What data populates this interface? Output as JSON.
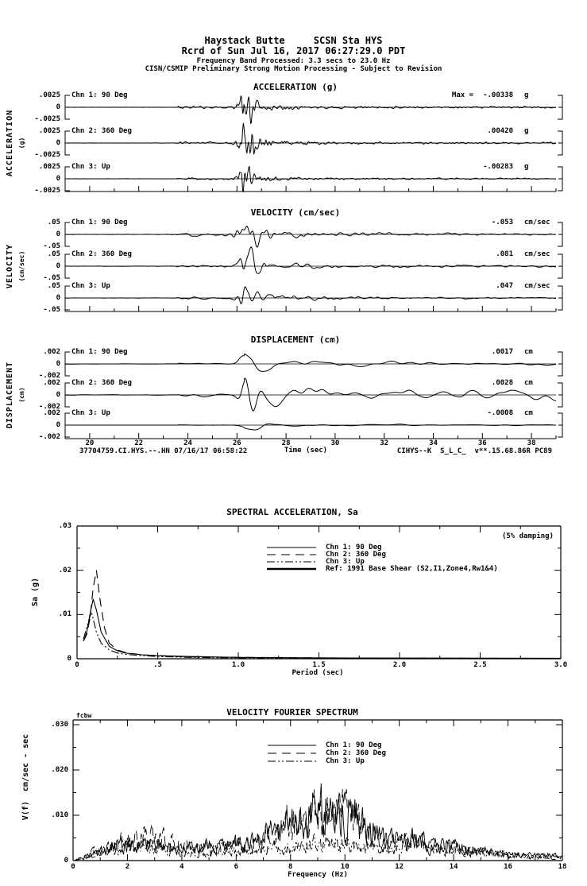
{
  "header": {
    "station_line": "Haystack Butte     SCSN Sta HYS",
    "record_line": "Rcrd of Sun Jul 16, 2017 06:27:29.0 PDT",
    "band_line": "Frequency Band Processed: 3.3 secs to 23.0 Hz",
    "notice_line": "CISN/CSMIP Preliminary Strong Motion Processing - Subject to Revision"
  },
  "timeseries": {
    "xlabel": "Time (sec)",
    "x_tick_labels": [
      "20",
      "22",
      "24",
      "26",
      "28",
      "30",
      "32",
      "34",
      "36",
      "38"
    ],
    "footer_left": "37704759.CI.HYS.--.HN 07/16/17 06:58:22",
    "footer_right": "CIHYS--K  S_L_C_  v**.15.68.86R PC89",
    "panels": [
      {
        "title": "ACCELERATION (g)",
        "side_label": "ACCELERATION",
        "side_unit": "(g)",
        "y_labels": [
          ".0025",
          "0",
          "-.0025"
        ],
        "channels": [
          {
            "label": "Chn 1: 90 Deg",
            "max_label": "Max =",
            "max_value": "-.00338",
            "max_unit": "g"
          },
          {
            "label": "Chn 2: 360 Deg",
            "max_value": ".00420",
            "max_unit": "g"
          },
          {
            "label": "Chn 3: Up",
            "max_value": "-.00283",
            "max_unit": "g"
          }
        ]
      },
      {
        "title": "VELOCITY (cm/sec)",
        "side_label": "VELOCITY",
        "side_unit": "(cm/sec)",
        "y_labels": [
          ".05",
          "0",
          "-.05"
        ],
        "channels": [
          {
            "label": "Chn 1: 90 Deg",
            "max_value": "-.053",
            "max_unit": "cm/sec"
          },
          {
            "label": "Chn 2: 360 Deg",
            "max_value": ".081",
            "max_unit": "cm/sec"
          },
          {
            "label": "Chn 3: Up",
            "max_value": ".047",
            "max_unit": "cm/sec"
          }
        ]
      },
      {
        "title": "DISPLACEMENT (cm)",
        "side_label": "DISPLACEMENT",
        "side_unit": "(cm)",
        "y_labels": [
          ".002",
          "0",
          "-.002"
        ],
        "channels": [
          {
            "label": "Chn 1: 90 Deg",
            "max_value": ".0017",
            "max_unit": "cm"
          },
          {
            "label": "Chn 2: 360 Deg",
            "max_value": ".0028",
            "max_unit": "cm"
          },
          {
            "label": "Chn 3: Up",
            "max_value": "-.0008",
            "max_unit": "cm"
          }
        ]
      }
    ]
  },
  "sa_plot": {
    "title": "SPECTRAL ACCELERATION, Sa",
    "damping_note": "(5% damping)",
    "ylabel": "Sa (g)",
    "xlabel": "Period (sec)",
    "y_tick_labels": [
      ".03",
      ".02",
      ".01",
      "0"
    ],
    "x_tick_labels": [
      "0",
      ".5",
      "1.0",
      "1.5",
      "2.0",
      "2.5",
      "3.0"
    ],
    "legend": [
      {
        "label": "Chn 1: 90 Deg",
        "style": "solid"
      },
      {
        "label": "Chn 2: 360 Deg",
        "style": "long-dash"
      },
      {
        "label": "Chn 3: Up",
        "style": "dash-dot-dot"
      },
      {
        "label": "Ref: 1991 Base Shear (S2,I1,Zone4,Rw1&4)",
        "style": "solid-thick"
      }
    ]
  },
  "fourier_plot": {
    "title": "VELOCITY FOURIER SPECTRUM",
    "corner_note": "fcbw",
    "ylabel": "V(f)  cm/sec - sec",
    "xlabel": "Frequency (Hz)",
    "y_tick_labels": [
      ".030",
      ".020",
      ".010",
      "0"
    ],
    "x_tick_labels": [
      "0",
      "2",
      "4",
      "6",
      "8",
      "10",
      "12",
      "14",
      "16",
      "18"
    ],
    "legend": [
      {
        "label": "Chn 1: 90 Deg",
        "style": "solid"
      },
      {
        "label": "Chn 2: 360 Deg",
        "style": "long-dash"
      },
      {
        "label": "Chn 3: Up",
        "style": "dash-dot-dot"
      }
    ]
  },
  "chart_data": [
    {
      "type": "line",
      "panel": "acceleration",
      "title": "ACCELERATION (g)",
      "xlabel": "Time (sec)",
      "x_range_sec": [
        19,
        39
      ],
      "x_ticks": [
        20,
        22,
        24,
        26,
        28,
        30,
        32,
        34,
        36,
        38
      ],
      "channel_axis_range": [
        -0.0025,
        0.0025
      ],
      "event_onset_sec": 23.6,
      "main_burst_sec": 26.2,
      "series": [
        {
          "name": "Chn 1: 90 Deg",
          "peak_value": -0.00338,
          "unit": "g"
        },
        {
          "name": "Chn 2: 360 Deg",
          "peak_value": 0.0042,
          "unit": "g"
        },
        {
          "name": "Chn 3: Up",
          "peak_value": -0.00283,
          "unit": "g"
        }
      ]
    },
    {
      "type": "line",
      "panel": "velocity",
      "title": "VELOCITY (cm/sec)",
      "xlabel": "Time (sec)",
      "x_range_sec": [
        19,
        39
      ],
      "x_ticks": [
        20,
        22,
        24,
        26,
        28,
        30,
        32,
        34,
        36,
        38
      ],
      "channel_axis_range": [
        -0.05,
        0.05
      ],
      "event_onset_sec": 23.6,
      "main_burst_sec": 26.2,
      "series": [
        {
          "name": "Chn 1: 90 Deg",
          "peak_value": -0.053,
          "unit": "cm/sec"
        },
        {
          "name": "Chn 2: 360 Deg",
          "peak_value": 0.081,
          "unit": "cm/sec"
        },
        {
          "name": "Chn 3: Up",
          "peak_value": 0.047,
          "unit": "cm/sec"
        }
      ]
    },
    {
      "type": "line",
      "panel": "displacement",
      "title": "DISPLACEMENT (cm)",
      "xlabel": "Time (sec)",
      "x_range_sec": [
        19,
        39
      ],
      "x_ticks": [
        20,
        22,
        24,
        26,
        28,
        30,
        32,
        34,
        36,
        38
      ],
      "channel_axis_range": [
        -0.002,
        0.002
      ],
      "event_onset_sec": 23.6,
      "main_burst_sec": 26.3,
      "series": [
        {
          "name": "Chn 1: 90 Deg",
          "peak_value": 0.0017,
          "unit": "cm"
        },
        {
          "name": "Chn 2: 360 Deg",
          "peak_value": 0.0028,
          "unit": "cm"
        },
        {
          "name": "Chn 3: Up",
          "peak_value": -0.0008,
          "unit": "cm"
        }
      ]
    },
    {
      "type": "line",
      "panel": "spectral_acceleration",
      "title": "SPECTRAL ACCELERATION, Sa",
      "xlabel": "Period (sec)",
      "ylabel": "Sa (g)",
      "xlim": [
        0,
        3.0
      ],
      "ylim": [
        0,
        0.03
      ],
      "damping": "5% damping",
      "grid": false,
      "legend_position": "top-center",
      "series": [
        {
          "name": "Chn 1: 90 Deg",
          "style": "solid",
          "points": [
            [
              0.04,
              0.004
            ],
            [
              0.06,
              0.006
            ],
            [
              0.08,
              0.01
            ],
            [
              0.1,
              0.0135
            ],
            [
              0.12,
              0.011
            ],
            [
              0.15,
              0.006
            ],
            [
              0.2,
              0.0028
            ],
            [
              0.25,
              0.0018
            ],
            [
              0.3,
              0.0013
            ],
            [
              0.4,
              0.0009
            ],
            [
              0.5,
              0.0007
            ],
            [
              0.7,
              0.0005
            ],
            [
              1.0,
              0.0003
            ],
            [
              1.5,
              0.0002
            ],
            [
              2.0,
              0.00015
            ],
            [
              3.0,
              0.0001
            ]
          ]
        },
        {
          "name": "Chn 2: 360 Deg",
          "style": "long-dash",
          "points": [
            [
              0.04,
              0.004
            ],
            [
              0.06,
              0.0055
            ],
            [
              0.08,
              0.009
            ],
            [
              0.1,
              0.016
            ],
            [
              0.12,
              0.02
            ],
            [
              0.14,
              0.014
            ],
            [
              0.17,
              0.007
            ],
            [
              0.2,
              0.0035
            ],
            [
              0.25,
              0.002
            ],
            [
              0.3,
              0.0014
            ],
            [
              0.4,
              0.0009
            ],
            [
              0.5,
              0.0007
            ],
            [
              0.7,
              0.0004
            ],
            [
              1.0,
              0.0003
            ],
            [
              1.5,
              0.0002
            ],
            [
              2.0,
              0.00012
            ],
            [
              3.0,
              8e-05
            ]
          ]
        },
        {
          "name": "Chn 3: Up",
          "style": "dash-dot-dot",
          "points": [
            [
              0.04,
              0.0045
            ],
            [
              0.06,
              0.007
            ],
            [
              0.08,
              0.0095
            ],
            [
              0.09,
              0.0105
            ],
            [
              0.1,
              0.009
            ],
            [
              0.12,
              0.006
            ],
            [
              0.15,
              0.0035
            ],
            [
              0.2,
              0.002
            ],
            [
              0.25,
              0.0013
            ],
            [
              0.3,
              0.001
            ],
            [
              0.4,
              0.0007
            ],
            [
              0.5,
              0.0005
            ],
            [
              0.7,
              0.0003
            ],
            [
              1.0,
              0.0002
            ],
            [
              1.5,
              0.00015
            ],
            [
              2.0,
              0.0001
            ],
            [
              3.0,
              8e-05
            ]
          ]
        },
        {
          "name": "Ref: 1991 Base Shear (S2,I1,Zone4,Rw1&4)",
          "style": "solid-thick",
          "points": []
        }
      ]
    },
    {
      "type": "line",
      "panel": "velocity_fourier_spectrum",
      "title": "VELOCITY FOURIER SPECTRUM",
      "xlabel": "Frequency (Hz)",
      "ylabel": "V(f) cm/sec - sec",
      "xlim": [
        0,
        18
      ],
      "ylim": [
        0,
        0.03
      ],
      "series": [
        {
          "name": "Chn 1: 90 Deg",
          "style": "solid",
          "peak_value": 0.0205,
          "envelope_points": [
            [
              0,
              0
            ],
            [
              0.4,
              0.06
            ],
            [
              1,
              0.22
            ],
            [
              1.5,
              0.28
            ],
            [
              2,
              0.33
            ],
            [
              2.5,
              0.3
            ],
            [
              3,
              0.35
            ],
            [
              3.5,
              0.28
            ],
            [
              4,
              0.22
            ],
            [
              4.5,
              0.25
            ],
            [
              5,
              0.28
            ],
            [
              5.5,
              0.3
            ],
            [
              6,
              0.32
            ],
            [
              6.5,
              0.35
            ],
            [
              7,
              0.45
            ],
            [
              7.5,
              0.55
            ],
            [
              8,
              0.7
            ],
            [
              8.5,
              0.8
            ],
            [
              9,
              0.92
            ],
            [
              9.3,
              1.0
            ],
            [
              9.6,
              0.95
            ],
            [
              10,
              0.85
            ],
            [
              10.3,
              0.9
            ],
            [
              10.6,
              0.7
            ],
            [
              11,
              0.5
            ],
            [
              11.5,
              0.42
            ],
            [
              12,
              0.35
            ],
            [
              12.5,
              0.42
            ],
            [
              13,
              0.32
            ],
            [
              13.5,
              0.28
            ],
            [
              14,
              0.3
            ],
            [
              14.5,
              0.22
            ],
            [
              15,
              0.18
            ],
            [
              15.5,
              0.15
            ],
            [
              16,
              0.12
            ],
            [
              17,
              0.1
            ],
            [
              18,
              0.09
            ]
          ]
        },
        {
          "name": "Chn 2: 360 Deg",
          "style": "long-dash",
          "peak_value": 0.0195,
          "envelope_points": [
            [
              0,
              0
            ],
            [
              0.4,
              0.08
            ],
            [
              0.8,
              0.2
            ],
            [
              1.2,
              0.28
            ],
            [
              1.6,
              0.35
            ],
            [
              2,
              0.42
            ],
            [
              2.4,
              0.48
            ],
            [
              2.7,
              0.52
            ],
            [
              3,
              0.45
            ],
            [
              3.5,
              0.4
            ],
            [
              4,
              0.3
            ],
            [
              4.5,
              0.25
            ],
            [
              5,
              0.25
            ],
            [
              5.5,
              0.28
            ],
            [
              6,
              0.3
            ],
            [
              6.5,
              0.35
            ],
            [
              7,
              0.42
            ],
            [
              7.5,
              0.55
            ],
            [
              8,
              0.75
            ],
            [
              8.5,
              0.85
            ],
            [
              9,
              1.0
            ],
            [
              9.5,
              0.9
            ],
            [
              10,
              0.95
            ],
            [
              10.5,
              0.75
            ],
            [
              11,
              0.55
            ],
            [
              11.5,
              0.45
            ],
            [
              12,
              0.35
            ],
            [
              12.5,
              0.38
            ],
            [
              13,
              0.3
            ],
            [
              13.5,
              0.25
            ],
            [
              14,
              0.28
            ],
            [
              14.5,
              0.22
            ],
            [
              15,
              0.18
            ],
            [
              16,
              0.1
            ],
            [
              17,
              0.08
            ],
            [
              18,
              0.08
            ]
          ]
        },
        {
          "name": "Chn 3: Up",
          "style": "dash-dot-dot",
          "peak_value": 0.0125,
          "envelope_points": [
            [
              0,
              0
            ],
            [
              0.4,
              0.06
            ],
            [
              0.8,
              0.18
            ],
            [
              1.2,
              0.25
            ],
            [
              1.6,
              0.3
            ],
            [
              2,
              0.38
            ],
            [
              2.5,
              0.42
            ],
            [
              3,
              0.38
            ],
            [
              3.5,
              0.3
            ],
            [
              4,
              0.25
            ],
            [
              4.5,
              0.22
            ],
            [
              5,
              0.25
            ],
            [
              5.5,
              0.28
            ],
            [
              6,
              0.3
            ],
            [
              6.5,
              0.32
            ],
            [
              7,
              0.35
            ],
            [
              7.5,
              0.4
            ],
            [
              8,
              0.45
            ],
            [
              8.5,
              0.5
            ],
            [
              9,
              0.52
            ],
            [
              9.5,
              0.55
            ],
            [
              10,
              0.52
            ],
            [
              10.5,
              0.48
            ],
            [
              11,
              0.4
            ],
            [
              11.5,
              0.38
            ],
            [
              12,
              0.42
            ],
            [
              12.5,
              0.5
            ],
            [
              13,
              0.38
            ],
            [
              13.5,
              0.3
            ],
            [
              14,
              0.35
            ],
            [
              14.5,
              0.28
            ],
            [
              15,
              0.22
            ],
            [
              15.5,
              0.18
            ],
            [
              16,
              0.14
            ],
            [
              17,
              0.1
            ],
            [
              18,
              0.08
            ]
          ]
        }
      ]
    }
  ]
}
